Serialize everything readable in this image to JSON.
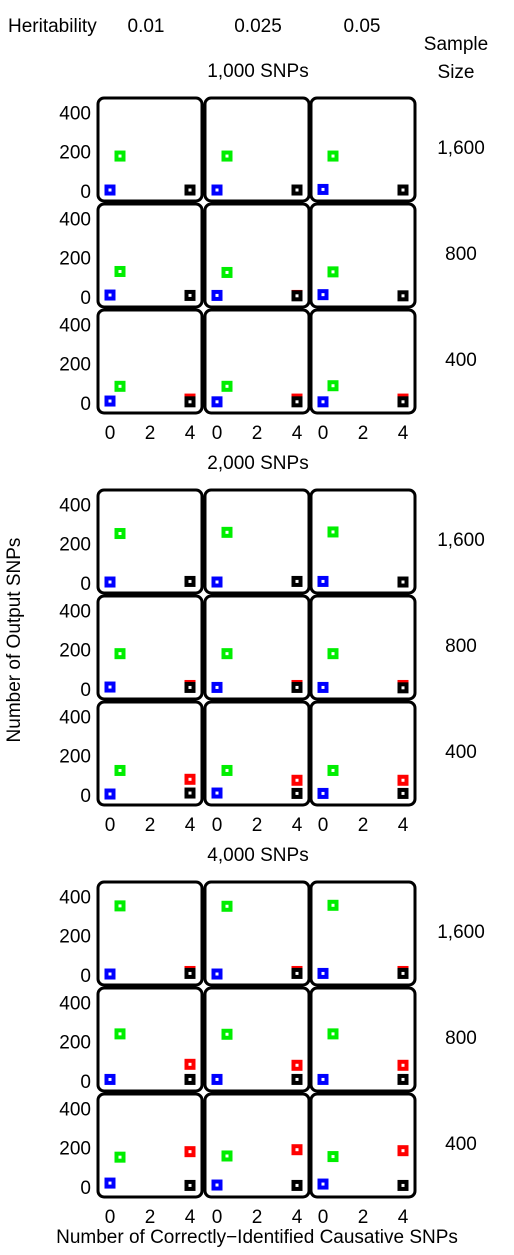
{
  "header": {
    "heritability_label": "Heritability",
    "heritability_values": [
      "0.01",
      "0.025",
      "0.05"
    ],
    "sample_size_label_line1": "Sample",
    "sample_size_label_line2": "Size"
  },
  "ylabel": "Number of Output SNPs",
  "xlabel": "Number of Correctly−Identified Causative SNPs",
  "chart_data": {
    "type": "scatter",
    "xlim": [
      -0.5,
      4.5
    ],
    "ylim": [
      0,
      450
    ],
    "x_ticks": [
      "0",
      "2",
      "4"
    ],
    "y_ticks": [
      "0",
      "200",
      "400"
    ],
    "sample_sizes": [
      "1,600",
      "800",
      "400"
    ],
    "heritability": [
      "0.01",
      "0.025",
      "0.05"
    ],
    "colors": {
      "green": "#00ee00",
      "blue": "#0000ff",
      "red": "#ff0000",
      "black": "#000000"
    },
    "groups": [
      {
        "title": "1,000 SNPs",
        "rows": [
          [
            [
              {
                "x": 0.5,
                "y": 178,
                "c": "green"
              },
              {
                "x": 0,
                "y": 5,
                "c": "blue"
              },
              {
                "x": 4,
                "y": 5,
                "c": "black"
              }
            ],
            [
              {
                "x": 0.5,
                "y": 178,
                "c": "green"
              },
              {
                "x": 0,
                "y": 5,
                "c": "blue"
              },
              {
                "x": 4,
                "y": 5,
                "c": "black"
              }
            ],
            [
              {
                "x": 0.5,
                "y": 178,
                "c": "green"
              },
              {
                "x": 0,
                "y": 8,
                "c": "blue"
              },
              {
                "x": 4,
                "y": 5,
                "c": "black"
              }
            ]
          ],
          [
            [
              {
                "x": 0.5,
                "y": 130,
                "c": "green"
              },
              {
                "x": 0,
                "y": 10,
                "c": "blue"
              },
              {
                "x": 4,
                "y": 8,
                "c": "black"
              }
            ],
            [
              {
                "x": 0.5,
                "y": 125,
                "c": "green"
              },
              {
                "x": 0,
                "y": 8,
                "c": "blue"
              },
              {
                "x": 4,
                "y": 8,
                "c": "red"
              },
              {
                "x": 4,
                "y": 6,
                "c": "black"
              }
            ],
            [
              {
                "x": 0.5,
                "y": 128,
                "c": "green"
              },
              {
                "x": 0,
                "y": 12,
                "c": "blue"
              },
              {
                "x": 4,
                "y": 6,
                "c": "black"
              }
            ]
          ],
          [
            [
              {
                "x": 0.5,
                "y": 85,
                "c": "green"
              },
              {
                "x": 0,
                "y": 10,
                "c": "blue"
              },
              {
                "x": 4,
                "y": 20,
                "c": "red"
              },
              {
                "x": 4,
                "y": 6,
                "c": "black"
              }
            ],
            [
              {
                "x": 0.5,
                "y": 85,
                "c": "green"
              },
              {
                "x": 0,
                "y": 6,
                "c": "blue"
              },
              {
                "x": 4,
                "y": 20,
                "c": "red"
              },
              {
                "x": 4,
                "y": 6,
                "c": "black"
              }
            ],
            [
              {
                "x": 0.5,
                "y": 88,
                "c": "green"
              },
              {
                "x": 0,
                "y": 6,
                "c": "blue"
              },
              {
                "x": 4,
                "y": 20,
                "c": "red"
              },
              {
                "x": 4,
                "y": 6,
                "c": "black"
              }
            ]
          ]
        ]
      },
      {
        "title": "2,000 SNPs",
        "rows": [
          [
            [
              {
                "x": 0.5,
                "y": 252,
                "c": "green"
              },
              {
                "x": 0,
                "y": 5,
                "c": "blue"
              },
              {
                "x": 4,
                "y": 8,
                "c": "black"
              }
            ],
            [
              {
                "x": 0.5,
                "y": 258,
                "c": "green"
              },
              {
                "x": 0,
                "y": 5,
                "c": "blue"
              },
              {
                "x": 4,
                "y": 8,
                "c": "black"
              }
            ],
            [
              {
                "x": 0.5,
                "y": 260,
                "c": "green"
              },
              {
                "x": 0,
                "y": 8,
                "c": "blue"
              },
              {
                "x": 4,
                "y": 5,
                "c": "black"
              }
            ]
          ],
          [
            [
              {
                "x": 0.5,
                "y": 180,
                "c": "green"
              },
              {
                "x": 0,
                "y": 10,
                "c": "blue"
              },
              {
                "x": 4,
                "y": 18,
                "c": "red"
              },
              {
                "x": 4,
                "y": 8,
                "c": "black"
              }
            ],
            [
              {
                "x": 0.5,
                "y": 180,
                "c": "green"
              },
              {
                "x": 0,
                "y": 8,
                "c": "blue"
              },
              {
                "x": 4,
                "y": 18,
                "c": "red"
              },
              {
                "x": 4,
                "y": 8,
                "c": "black"
              }
            ],
            [
              {
                "x": 0.5,
                "y": 180,
                "c": "green"
              },
              {
                "x": 0,
                "y": 8,
                "c": "blue"
              },
              {
                "x": 4,
                "y": 18,
                "c": "red"
              },
              {
                "x": 4,
                "y": 6,
                "c": "black"
              }
            ]
          ],
          [
            [
              {
                "x": 0.5,
                "y": 125,
                "c": "green"
              },
              {
                "x": 0,
                "y": 5,
                "c": "blue"
              },
              {
                "x": 4,
                "y": 80,
                "c": "red"
              },
              {
                "x": 4,
                "y": 10,
                "c": "black"
              }
            ],
            [
              {
                "x": 0.5,
                "y": 125,
                "c": "green"
              },
              {
                "x": 0,
                "y": 10,
                "c": "blue"
              },
              {
                "x": 4,
                "y": 75,
                "c": "red"
              },
              {
                "x": 4,
                "y": 8,
                "c": "black"
              }
            ],
            [
              {
                "x": 0.5,
                "y": 125,
                "c": "green"
              },
              {
                "x": 0,
                "y": 8,
                "c": "blue"
              },
              {
                "x": 4,
                "y": 75,
                "c": "red"
              },
              {
                "x": 4,
                "y": 8,
                "c": "black"
              }
            ]
          ]
        ]
      },
      {
        "title": "4,000 SNPs",
        "rows": [
          [
            [
              {
                "x": 0.5,
                "y": 352,
                "c": "green"
              },
              {
                "x": 0,
                "y": 5,
                "c": "blue"
              },
              {
                "x": 4,
                "y": 18,
                "c": "red"
              },
              {
                "x": 4,
                "y": 8,
                "c": "black"
              }
            ],
            [
              {
                "x": 0.5,
                "y": 350,
                "c": "green"
              },
              {
                "x": 0,
                "y": 5,
                "c": "blue"
              },
              {
                "x": 4,
                "y": 18,
                "c": "red"
              },
              {
                "x": 4,
                "y": 8,
                "c": "black"
              }
            ],
            [
              {
                "x": 0.5,
                "y": 355,
                "c": "green"
              },
              {
                "x": 0,
                "y": 8,
                "c": "blue"
              },
              {
                "x": 4,
                "y": 18,
                "c": "red"
              },
              {
                "x": 4,
                "y": 8,
                "c": "black"
              }
            ]
          ],
          [
            [
              {
                "x": 0.5,
                "y": 240,
                "c": "green"
              },
              {
                "x": 0,
                "y": 8,
                "c": "blue"
              },
              {
                "x": 4,
                "y": 85,
                "c": "red"
              },
              {
                "x": 4,
                "y": 8,
                "c": "black"
              }
            ],
            [
              {
                "x": 0.5,
                "y": 238,
                "c": "green"
              },
              {
                "x": 0,
                "y": 8,
                "c": "blue"
              },
              {
                "x": 4,
                "y": 80,
                "c": "red"
              },
              {
                "x": 4,
                "y": 8,
                "c": "black"
              }
            ],
            [
              {
                "x": 0.5,
                "y": 240,
                "c": "green"
              },
              {
                "x": 0,
                "y": 8,
                "c": "blue"
              },
              {
                "x": 4,
                "y": 80,
                "c": "red"
              },
              {
                "x": 4,
                "y": 8,
                "c": "black"
              }
            ]
          ],
          [
            [
              {
                "x": 0.5,
                "y": 152,
                "c": "green"
              },
              {
                "x": 0,
                "y": 20,
                "c": "blue"
              },
              {
                "x": 4,
                "y": 180,
                "c": "red"
              },
              {
                "x": 4,
                "y": 8,
                "c": "black"
              }
            ],
            [
              {
                "x": 0.5,
                "y": 158,
                "c": "green"
              },
              {
                "x": 0,
                "y": 10,
                "c": "blue"
              },
              {
                "x": 4,
                "y": 190,
                "c": "red"
              },
              {
                "x": 4,
                "y": 8,
                "c": "black"
              }
            ],
            [
              {
                "x": 0.5,
                "y": 155,
                "c": "green"
              },
              {
                "x": 0,
                "y": 15,
                "c": "blue"
              },
              {
                "x": 4,
                "y": 185,
                "c": "red"
              },
              {
                "x": 4,
                "y": 8,
                "c": "black"
              }
            ]
          ]
        ]
      }
    ]
  }
}
